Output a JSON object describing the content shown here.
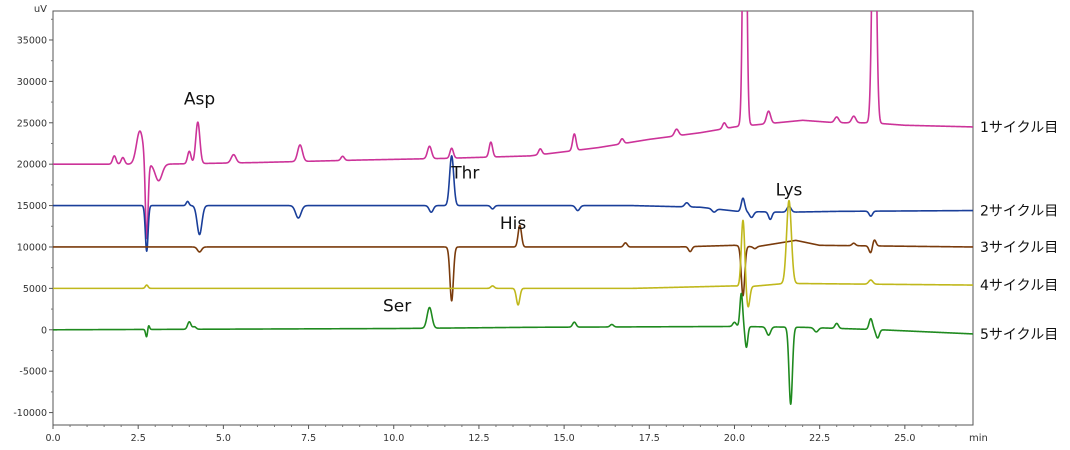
{
  "chart_data": {
    "type": "line",
    "title": "",
    "xlabel": "min",
    "ylabel": "uV",
    "xlim": [
      0,
      27
    ],
    "ylim": [
      -11500,
      38500
    ],
    "x_ticks": [
      0.0,
      2.5,
      5.0,
      7.5,
      10.0,
      12.5,
      15.0,
      17.5,
      20.0,
      22.5,
      25.0
    ],
    "x_tick_labels": [
      "0.0",
      "2.5",
      "5.0",
      "7.5",
      "10.0",
      "12.5",
      "15.0",
      "17.5",
      "20.0",
      "22.5",
      "25.0"
    ],
    "y_ticks": [
      -10000,
      -5000,
      0,
      5000,
      10000,
      15000,
      20000,
      25000,
      30000,
      35000
    ],
    "y_tick_labels": [
      "-10000",
      "-5000",
      "0",
      "5000",
      "10000",
      "15000",
      "20000",
      "25000",
      "30000",
      "35000"
    ],
    "grid": false,
    "legend": "right-side trace labels",
    "series": [
      {
        "name": "1サイクル目",
        "color": "#cc3399",
        "baseline": [
          [
            0,
            20000
          ],
          [
            3.2,
            20000
          ],
          [
            6,
            20200
          ],
          [
            9,
            20500
          ],
          [
            11.5,
            20700
          ],
          [
            14,
            21000
          ],
          [
            16,
            22000
          ],
          [
            17.5,
            23000
          ],
          [
            19,
            23800
          ],
          [
            20,
            24500
          ],
          [
            22,
            25300
          ],
          [
            23,
            25000
          ],
          [
            24,
            25000
          ],
          [
            25,
            24700
          ],
          [
            27,
            24500
          ]
        ],
        "peaks": [
          [
            1.8,
            1000,
            0.05
          ],
          [
            2.05,
            800,
            0.05
          ],
          [
            2.55,
            4000,
            0.1
          ],
          [
            2.75,
            -9500,
            0.04
          ],
          [
            3.1,
            -2000,
            0.1
          ],
          [
            4.0,
            1500,
            0.05
          ],
          [
            4.25,
            5000,
            0.06
          ],
          [
            5.3,
            1000,
            0.07
          ],
          [
            7.25,
            2000,
            0.07
          ],
          [
            8.5,
            500,
            0.05
          ],
          [
            11.05,
            1500,
            0.06
          ],
          [
            11.7,
            1200,
            0.05
          ],
          [
            12.85,
            1800,
            0.05
          ],
          [
            14.3,
            700,
            0.05
          ],
          [
            15.3,
            2000,
            0.05
          ],
          [
            16.7,
            600,
            0.05
          ],
          [
            18.3,
            800,
            0.06
          ],
          [
            19.7,
            700,
            0.05
          ],
          [
            20.3,
            1000,
            0.08
          ],
          [
            20.3,
            45000,
            0.05
          ],
          [
            21.0,
            1500,
            0.06
          ],
          [
            23.0,
            700,
            0.06
          ],
          [
            23.5,
            800,
            0.06
          ],
          [
            24.1,
            34000,
            0.06
          ]
        ],
        "label": "1サイクル目"
      },
      {
        "name": "2サイクル目",
        "color": "#1a3f9a",
        "baseline": [
          [
            0,
            15000
          ],
          [
            5,
            15000
          ],
          [
            10,
            15000
          ],
          [
            14,
            15000
          ],
          [
            17,
            15000
          ],
          [
            19,
            14800
          ],
          [
            20.1,
            14300
          ],
          [
            21.5,
            14200
          ],
          [
            23,
            14300
          ],
          [
            27,
            14400
          ]
        ],
        "peaks": [
          [
            2.75,
            -5500,
            0.04
          ],
          [
            3.95,
            500,
            0.04
          ],
          [
            4.3,
            -3500,
            0.07
          ],
          [
            7.2,
            -1500,
            0.08
          ],
          [
            11.1,
            -800,
            0.06
          ],
          [
            11.7,
            6000,
            0.06
          ],
          [
            12.9,
            -400,
            0.05
          ],
          [
            15.4,
            -600,
            0.06
          ],
          [
            18.6,
            500,
            0.06
          ],
          [
            19.4,
            -400,
            0.06
          ],
          [
            20.25,
            1600,
            0.05
          ],
          [
            20.5,
            -700,
            0.06
          ],
          [
            21.05,
            -900,
            0.05
          ],
          [
            21.6,
            700,
            0.06
          ],
          [
            24.0,
            -600,
            0.05
          ]
        ],
        "label": "2サイクル目"
      },
      {
        "name": "3サイクル目",
        "color": "#7a3b0c",
        "baseline": [
          [
            0,
            10000
          ],
          [
            10,
            10000
          ],
          [
            14,
            10000
          ],
          [
            18.3,
            10000
          ],
          [
            20,
            10200
          ],
          [
            20.6,
            10000
          ],
          [
            21.8,
            10800
          ],
          [
            22.5,
            10200
          ],
          [
            27,
            10000
          ]
        ],
        "peaks": [
          [
            4.3,
            -600,
            0.06
          ],
          [
            11.7,
            -6500,
            0.05
          ],
          [
            13.7,
            2600,
            0.05
          ],
          [
            16.8,
            500,
            0.05
          ],
          [
            18.7,
            -600,
            0.05
          ],
          [
            20.25,
            -6000,
            0.05
          ],
          [
            20.6,
            -200,
            0.05
          ],
          [
            23.5,
            300,
            0.05
          ],
          [
            24.0,
            -900,
            0.05
          ],
          [
            24.1,
            800,
            0.05
          ]
        ],
        "label": "3サイクル目"
      },
      {
        "name": "4サイクル目",
        "color": "#c0b81c",
        "baseline": [
          [
            0,
            5000
          ],
          [
            14,
            5000
          ],
          [
            17,
            5000
          ],
          [
            20,
            5300
          ],
          [
            20.4,
            5200
          ],
          [
            21.5,
            5600
          ],
          [
            27,
            5400
          ]
        ],
        "peaks": [
          [
            2.75,
            400,
            0.04
          ],
          [
            12.9,
            300,
            0.05
          ],
          [
            13.65,
            -2000,
            0.05
          ],
          [
            20.25,
            8000,
            0.05
          ],
          [
            20.4,
            -2500,
            0.05
          ],
          [
            21.6,
            10000,
            0.07
          ],
          [
            24.0,
            500,
            0.06
          ]
        ],
        "label": "4サイクル目"
      },
      {
        "name": "5サイクル目",
        "color": "#1f8a1f",
        "baseline": [
          [
            0,
            0
          ],
          [
            10,
            150
          ],
          [
            14,
            300
          ],
          [
            20,
            400
          ],
          [
            22,
            300
          ],
          [
            24.3,
            0
          ],
          [
            27,
            -500
          ]
        ],
        "peaks": [
          [
            2.75,
            -1000,
            0.03
          ],
          [
            2.8,
            600,
            0.03
          ],
          [
            4.0,
            900,
            0.05
          ],
          [
            4.15,
            300,
            0.05
          ],
          [
            11.05,
            2500,
            0.07
          ],
          [
            15.3,
            600,
            0.05
          ],
          [
            16.4,
            300,
            0.05
          ],
          [
            20.0,
            500,
            0.05
          ],
          [
            20.2,
            4000,
            0.04
          ],
          [
            20.35,
            -2500,
            0.04
          ],
          [
            21.0,
            -1000,
            0.06
          ],
          [
            21.65,
            -9300,
            0.05
          ],
          [
            22.4,
            -500,
            0.06
          ],
          [
            23.0,
            600,
            0.05
          ],
          [
            24.0,
            1300,
            0.05
          ],
          [
            24.2,
            -1000,
            0.05
          ]
        ],
        "label": "5サイクル目"
      }
    ],
    "annotations": [
      {
        "text": "Asp",
        "x": 4.3,
        "y": 27200
      },
      {
        "text": "Thr",
        "x": 12.1,
        "y": 18300
      },
      {
        "text": "His",
        "x": 13.5,
        "y": 12200
      },
      {
        "text": "Lys",
        "x": 21.6,
        "y": 16200
      },
      {
        "text": "Ser",
        "x": 10.1,
        "y": 2200
      }
    ]
  }
}
